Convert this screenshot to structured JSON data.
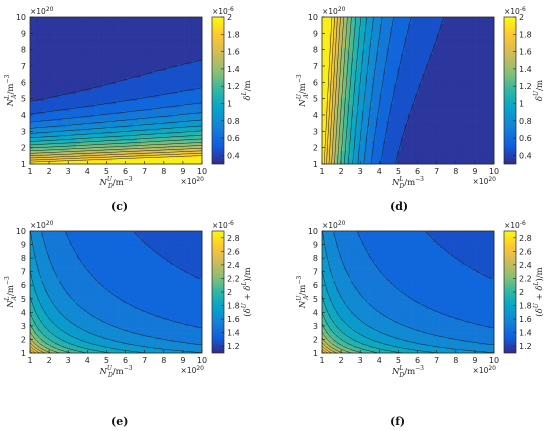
{
  "chart_data": [
    {
      "type": "contour",
      "panel_label": "(c)",
      "xlabel": "N_D^U/m^-3",
      "ylabel": "N_A^L/m^-3",
      "colorbar_label": "δ^L/m",
      "x_ticks": [
        1,
        2,
        3,
        4,
        5,
        6,
        7,
        8,
        9,
        10
      ],
      "y_ticks": [
        1,
        2,
        3,
        4,
        5,
        6,
        7,
        8,
        9,
        10
      ],
      "axis_multiplier": "×10^20",
      "xlim": [
        1,
        10
      ],
      "ylim": [
        1,
        10
      ],
      "colorbar_ticks": [
        "0.4",
        "0.6",
        "0.8",
        "1",
        "1.2",
        "1.4",
        "1.6",
        "1.8",
        "2"
      ],
      "colorbar_multiplier": "×10^-6",
      "clim": [
        0.3,
        2.0
      ],
      "grid": false,
      "colormap": "parula",
      "trend": "δ^L rises toward low N_A^L; maximum ≈2e-6 at y=1, minimum ≈0.3e-6 at top-left"
    },
    {
      "type": "contour",
      "panel_label": "(d)",
      "xlabel": "N_D^L/m^-3",
      "ylabel": "N_A^U/m^-3",
      "colorbar_label": "δ^U/m",
      "x_ticks": [
        1,
        2,
        3,
        4,
        5,
        6,
        7,
        8,
        9,
        10
      ],
      "y_ticks": [
        1,
        2,
        3,
        4,
        5,
        6,
        7,
        8,
        9,
        10
      ],
      "axis_multiplier": "×10^20",
      "xlim": [
        1,
        10
      ],
      "ylim": [
        1,
        10
      ],
      "colorbar_ticks": [
        "0.4",
        "0.6",
        "0.8",
        "1",
        "1.2",
        "1.4",
        "1.6",
        "1.8",
        "2"
      ],
      "colorbar_multiplier": "×10^-6",
      "clim": [
        0.3,
        2.0
      ],
      "grid": false,
      "colormap": "parula",
      "trend": "δ^U rises toward low N_D^L; maximum ≈2e-6 at x=1, minimum ≈0.3e-6 at bottom-right"
    },
    {
      "type": "contour",
      "panel_label": "(e)",
      "xlabel": "N_D^U/m^-3",
      "ylabel": "N_A^L/m^-3",
      "colorbar_label": "(δ^U + δ^L)/m",
      "x_ticks": [
        1,
        2,
        3,
        4,
        5,
        6,
        7,
        8,
        9,
        10
      ],
      "y_ticks": [
        1,
        2,
        3,
        4,
        5,
        6,
        7,
        8,
        9,
        10
      ],
      "axis_multiplier": "×10^20",
      "xlim": [
        1,
        10
      ],
      "ylim": [
        1,
        10
      ],
      "colorbar_ticks": [
        "1.2",
        "1.4",
        "1.6",
        "1.8",
        "2",
        "2.2",
        "2.4",
        "2.6",
        "2.8"
      ],
      "colorbar_multiplier": "×10^-6",
      "clim": [
        1.1,
        2.9
      ],
      "grid": false,
      "colormap": "parula",
      "trend": "sum largest at low doping (bottom-left ≈2.9e-6), smallest at top-right ≈1.1e-6"
    },
    {
      "type": "contour",
      "panel_label": "(f)",
      "xlabel": "N_D^L/m^-3",
      "ylabel": "N_A^U/m^-3",
      "colorbar_label": "(δ^U + δ^L)/m",
      "x_ticks": [
        1,
        2,
        3,
        4,
        5,
        6,
        7,
        8,
        9,
        10
      ],
      "y_ticks": [
        1,
        2,
        3,
        4,
        5,
        6,
        7,
        8,
        9,
        10
      ],
      "axis_multiplier": "×10^20",
      "xlim": [
        1,
        10
      ],
      "ylim": [
        1,
        10
      ],
      "colorbar_ticks": [
        "1.2",
        "1.4",
        "1.6",
        "1.8",
        "2",
        "2.2",
        "2.4",
        "2.6",
        "2.8"
      ],
      "colorbar_multiplier": "×10^-6",
      "clim": [
        1.1,
        2.9
      ],
      "grid": false,
      "colormap": "parula",
      "trend": "sum largest at low doping (bottom-left ≈2.9e-6), smallest at top-right ≈1.1e-6"
    }
  ]
}
